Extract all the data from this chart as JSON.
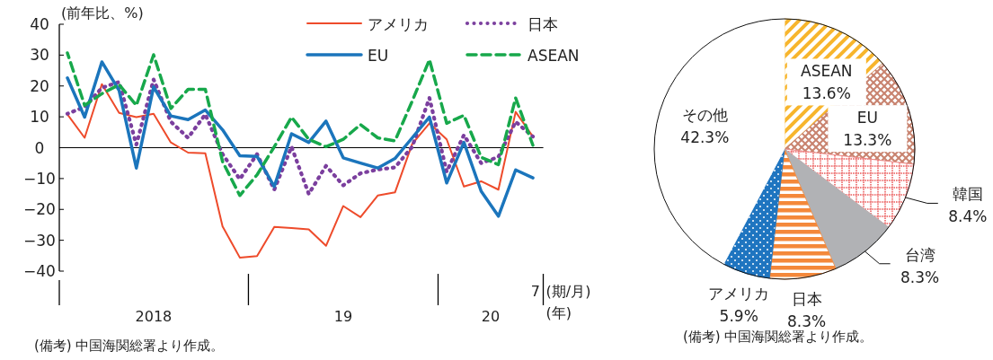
{
  "chart_data": [
    {
      "type": "line",
      "ylabel": "(前年比、%)",
      "xlabel": "(期/月)\n(年)",
      "categories": [
        null,
        null,
        null,
        null,
        null,
        null,
        null,
        null,
        null,
        null,
        null,
        null,
        null,
        null,
        null,
        null,
        null,
        null,
        null,
        null,
        null,
        null,
        null,
        null,
        null,
        null,
        null,
        "7"
      ],
      "ylim": [
        -40,
        40
      ],
      "yticks": [
        -40,
        -30,
        -20,
        -10,
        0,
        10,
        20,
        30,
        40
      ],
      "grid": false,
      "legend": "top",
      "ref_lines": [
        {
          "axis": "y",
          "value": 0,
          "color": "#000000"
        }
      ],
      "series": [
        {
          "name": "アメリカ",
          "color": "#ee4b2b",
          "line_style": "solid",
          "values": [
            10.8,
            3.2,
            20.6,
            11.3,
            9.9,
            11.0,
            1.7,
            -1.6,
            -1.8,
            -25.5,
            -35.6,
            -35.1,
            -25.7,
            -26.0,
            -26.5,
            -31.8,
            -18.9,
            -22.5,
            -15.5,
            -14.5,
            1.2,
            7.9,
            2.7,
            -12.6,
            -10.9,
            -13.6,
            11.6,
            3.6
          ]
        },
        {
          "name": "日本",
          "color": "#7b3f9e",
          "line_style": "dotted",
          "values": [
            11.0,
            13.2,
            19.4,
            21.3,
            1.0,
            22.1,
            8.4,
            3.2,
            10.8,
            -2.1,
            -10.2,
            -2.1,
            -13.6,
            0.3,
            -15.0,
            -5.9,
            -12.2,
            -8.3,
            -7.1,
            -6.4,
            0.3,
            16.1,
            -7.8,
            4.1,
            -5.0,
            -3.0,
            8.4,
            3.6
          ]
        },
        {
          "name": "EU",
          "color": "#1b75bc",
          "line_style": "solid",
          "values": [
            22.6,
            9.9,
            27.8,
            18.5,
            -6.6,
            19.7,
            10.3,
            9.1,
            12.2,
            5.8,
            -2.6,
            -2.8,
            -12.6,
            4.5,
            1.7,
            8.6,
            -3.3,
            -5.0,
            -6.6,
            -3.5,
            3.2,
            9.9,
            -11.4,
            1.7,
            -14.1,
            -22.2,
            -7.2,
            -9.8
          ]
        },
        {
          "name": "ASEAN",
          "color": "#17a84b",
          "line_style": "dashed",
          "values": [
            30.7,
            13.7,
            17.5,
            20.4,
            13.7,
            30.1,
            12.7,
            18.9,
            18.9,
            -4.5,
            -15.5,
            -8.8,
            0.3,
            9.9,
            2.7,
            0.3,
            2.7,
            7.5,
            3.2,
            2.2,
            15.1,
            28.5,
            7.9,
            10.5,
            -3.1,
            -5.5,
            16.1,
            0.8
          ]
        }
      ],
      "annotations": [
        "2018",
        "19",
        "20",
        "(備考) 中国海関総署より作成。"
      ]
    },
    {
      "type": "pie",
      "categories": [
        "ASEAN",
        "EU",
        "韓国",
        "台湾",
        "日本",
        "アメリカ",
        "その他"
      ],
      "values": [
        13.6,
        13.3,
        8.4,
        8.3,
        8.3,
        5.9,
        42.3
      ],
      "value_labels": [
        "13.6%",
        "13.3%",
        "8.4%",
        "8.3%",
        "8.3%",
        "5.9%",
        "42.3%"
      ],
      "colors": [
        "#f7b52c",
        "#c8826e",
        "#ef7f7f",
        "#b1b2b5",
        "#f4883a",
        "#1f75c0",
        "#ffffff"
      ],
      "annotations": [
        "(備考) 中国海関総署より作成。"
      ]
    }
  ]
}
